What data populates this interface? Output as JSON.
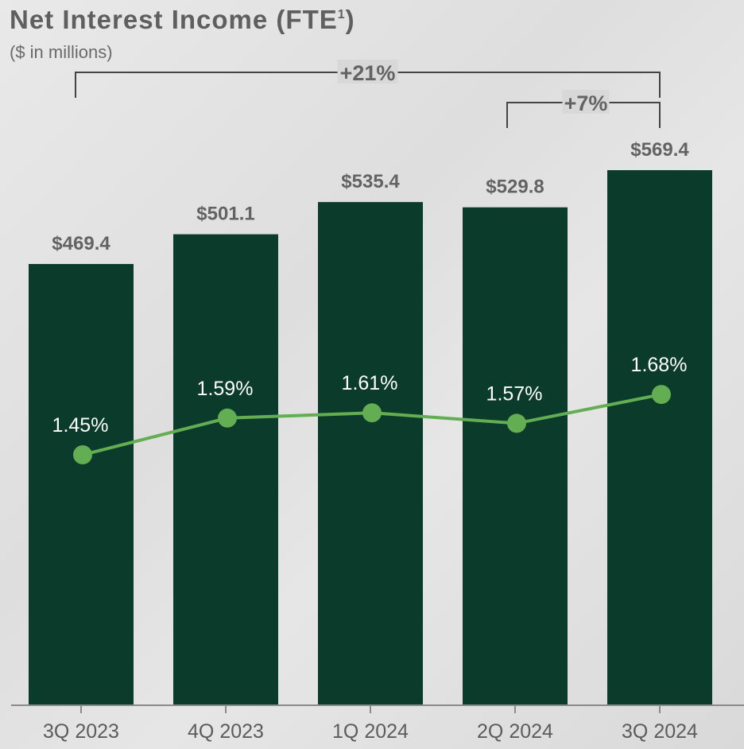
{
  "header": {
    "title": "Net Interest Income (FTE",
    "title_sup": "1",
    "title_close": ")",
    "subtitle": "($ in millions)"
  },
  "colors": {
    "bar": "#0a3b2b",
    "line": "#63ad52",
    "value_label": "#636363",
    "pct_label": "#ffffff",
    "axis_label": "#5c5c5c",
    "bracket": "#444444"
  },
  "chart_data": {
    "type": "bar",
    "categories": [
      "3Q 2023",
      "4Q 2023",
      "1Q 2024",
      "2Q 2024",
      "3Q 2024"
    ],
    "series": [
      {
        "type": "bar",
        "values": [
          469.4,
          501.1,
          535.4,
          529.8,
          569.4
        ],
        "labels": [
          "$469.4",
          "$501.1",
          "$535.4",
          "$529.8",
          "$569.4"
        ]
      },
      {
        "type": "line",
        "values": [
          1.45,
          1.59,
          1.61,
          1.57,
          1.68
        ],
        "labels": [
          "1.45%",
          "1.59%",
          "1.61%",
          "1.57%",
          "1.68%"
        ]
      }
    ],
    "annotations": [
      {
        "label": "+21%",
        "from": "3Q 2023",
        "to": "3Q 2024"
      },
      {
        "label": "+7%",
        "from": "2Q 2024",
        "to": "3Q 2024"
      }
    ],
    "ylim": [
      0,
      600
    ],
    "grid": false
  }
}
